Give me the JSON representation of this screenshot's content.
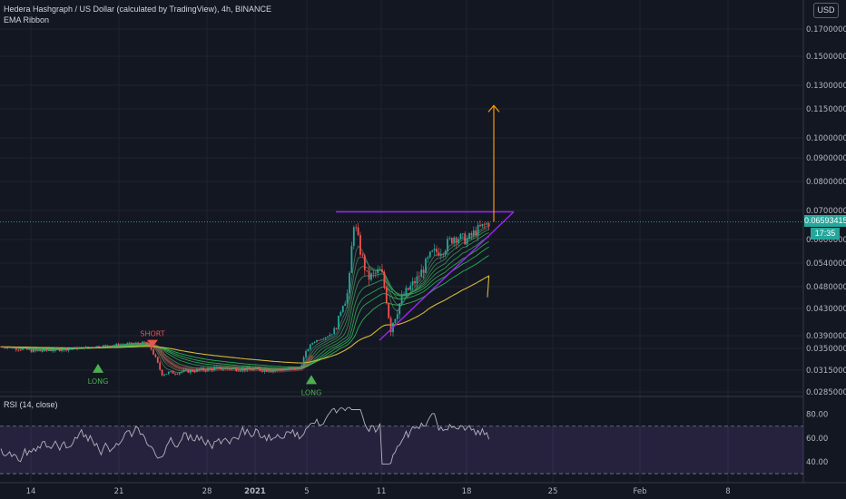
{
  "header": {
    "title": "Hedera Hashgraph / US Dollar (calculated by TradingView), 4h, BINANCE",
    "indicator": "EMA Ribbon",
    "currency_button": "USD"
  },
  "rsi_header": {
    "label": "RSI (14, close)"
  },
  "last_price": {
    "value": "0.06593415",
    "countdown": "17:35"
  },
  "signals": {
    "short": "SHORT",
    "long": "LONG"
  },
  "colors": {
    "up": "#26a69a",
    "down": "#ef5350",
    "pattern": "#9c27f0",
    "arrow": "#ff9800",
    "ema200": "#d4b73a",
    "rsi": "#b2b5be"
  },
  "chart_data": [
    {
      "type": "candlestick",
      "title": "Hedera Hashgraph / US Dollar (calculated by TradingView), 4h, BINANCE",
      "x_ticks": [
        "14",
        "21",
        "28",
        "2021",
        "5",
        "11",
        "18",
        "25",
        "Feb",
        "8"
      ],
      "y_ticks": [
        "0.02850000",
        "0.03150000",
        "0.03500000",
        "0.03900000",
        "0.04300000",
        "0.04800000",
        "0.05400000",
        "0.06000000",
        "0.07000000",
        "0.08000000",
        "0.09000000",
        "0.10000000",
        "0.11500000",
        "0.13000000",
        "0.15000000",
        "0.17000000"
      ],
      "y_scale": "log",
      "ylim": [
        0.0275,
        0.19
      ],
      "grid": true,
      "series_approx": {
        "dates": [
          "Dec 10",
          "Dec 14",
          "Dec 17",
          "Dec 20",
          "Dec 22",
          "Dec 23",
          "Dec 25",
          "Dec 28",
          "Jan 1",
          "Jan 4",
          "Jan 5",
          "Jan 6",
          "Jan 7",
          "Jan 8",
          "Jan 9",
          "Jan 10",
          "Jan 11",
          "Jan 12",
          "Jan 13",
          "Jan 14",
          "Jan 15",
          "Jan 16",
          "Jan 17",
          "Jan 18",
          "Jan 19"
        ],
        "close": [
          0.035,
          0.0345,
          0.0352,
          0.036,
          0.0368,
          0.032,
          0.0325,
          0.0322,
          0.0318,
          0.0315,
          0.036,
          0.038,
          0.045,
          0.064,
          0.054,
          0.052,
          0.044,
          0.047,
          0.05,
          0.056,
          0.06,
          0.062,
          0.063,
          0.0655,
          0.0659
        ]
      },
      "annotations": [
        "SHORT",
        "LONG",
        "LONG",
        "0.06593415",
        "17:35"
      ],
      "resistance_level": 0.0695,
      "target_level": 0.117
    },
    {
      "type": "line",
      "title": "RSI (14, close)",
      "y_ticks": [
        "40.00",
        "60.00",
        "80.00"
      ],
      "bands": [
        30,
        70
      ],
      "ylim": [
        27,
        92
      ]
    }
  ]
}
